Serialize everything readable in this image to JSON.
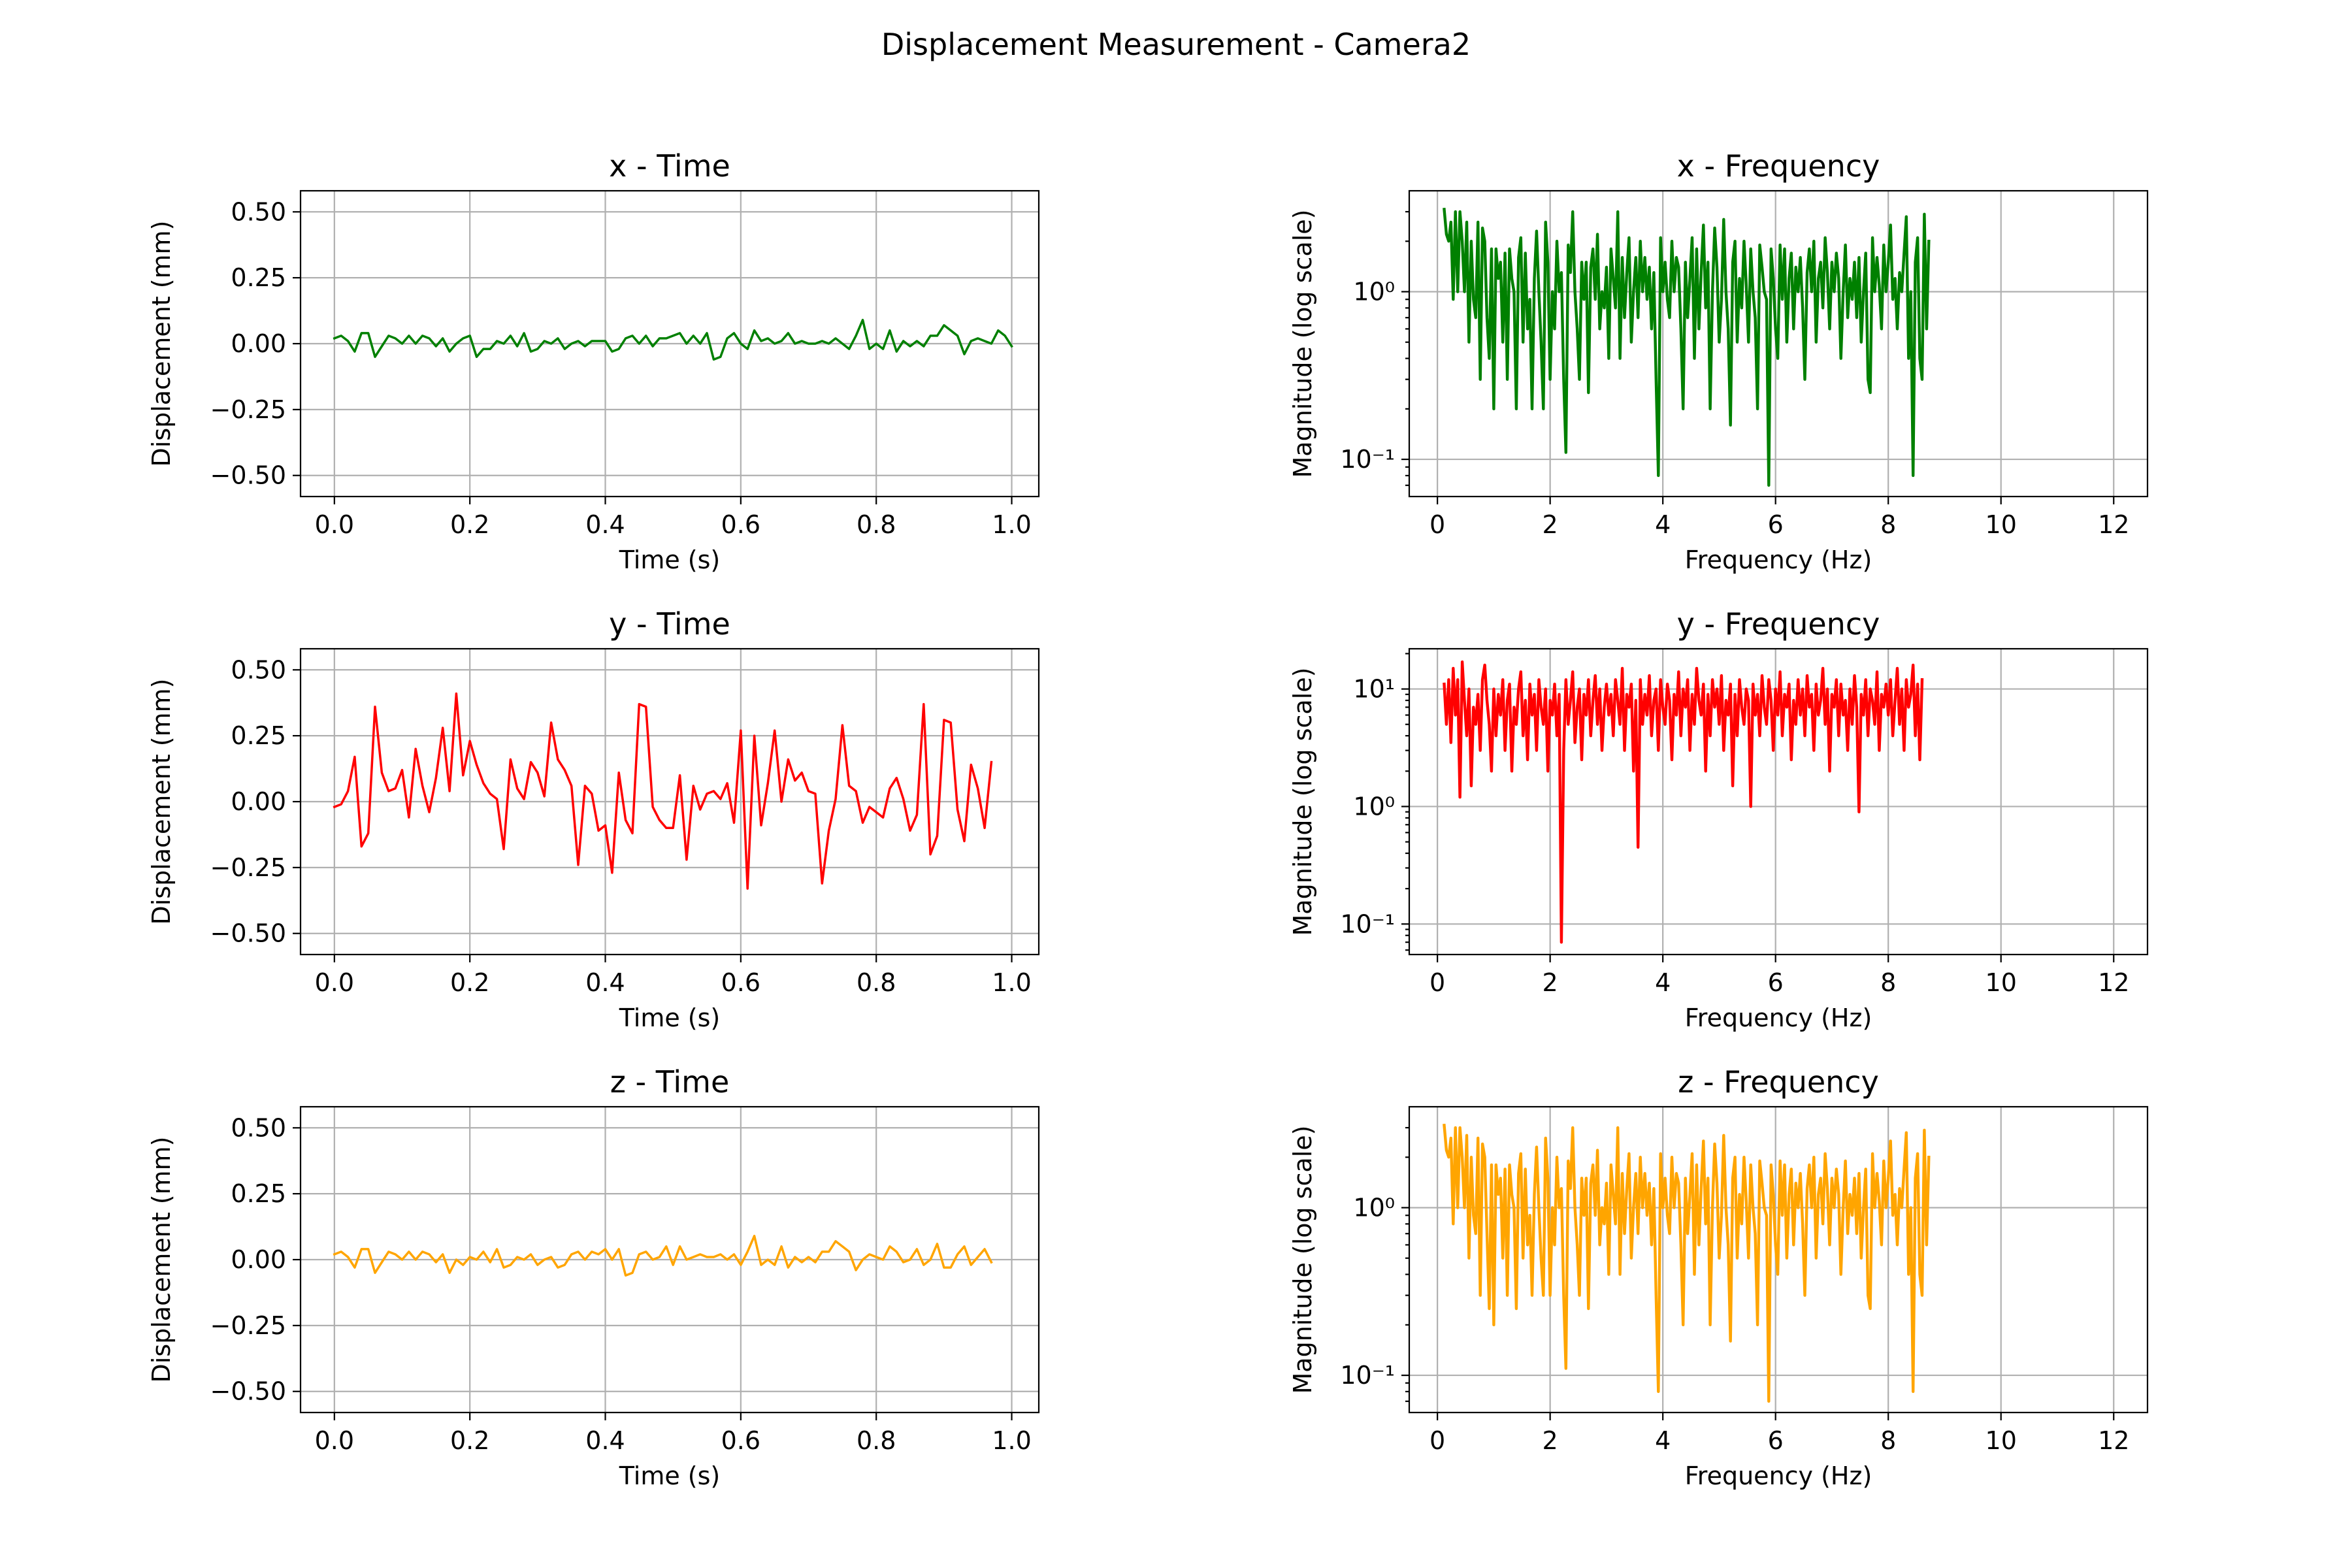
{
  "figure": {
    "title": "Displacement Measurement - Camera2"
  },
  "chart_data": [
    {
      "type": "line",
      "title": "x - Time",
      "xlabel": "Time (s)",
      "ylabel": "Displacement (mm)",
      "xlim": [
        -0.05,
        1.04
      ],
      "ylim": [
        -0.58,
        0.58
      ],
      "xticks": [
        0.0,
        0.2,
        0.4,
        0.6,
        0.8,
        1.0
      ],
      "xtick_labels": [
        "0.0",
        "0.2",
        "0.4",
        "0.6",
        "0.8",
        "1.0"
      ],
      "yticks": [
        0.5,
        0.25,
        0.0,
        -0.25,
        -0.5
      ],
      "ytick_labels": [
        "0.50",
        "0.25",
        "0.00",
        "−0.25",
        "−0.50"
      ],
      "grid": true,
      "color": "#008000",
      "x_start": 0.0,
      "x_step": 0.01,
      "y": [
        0.02,
        0.03,
        0.01,
        -0.03,
        0.04,
        0.04,
        -0.05,
        -0.01,
        0.03,
        0.02,
        0.0,
        0.03,
        0.0,
        0.03,
        0.02,
        -0.01,
        0.02,
        -0.03,
        0.0,
        0.02,
        0.03,
        -0.05,
        -0.02,
        -0.02,
        0.01,
        0.0,
        0.03,
        -0.01,
        0.04,
        -0.03,
        -0.02,
        0.01,
        0.0,
        0.02,
        -0.02,
        0.0,
        0.01,
        -0.01,
        0.01,
        0.01,
        0.01,
        -0.03,
        -0.02,
        0.02,
        0.03,
        0.0,
        0.03,
        -0.01,
        0.02,
        0.02,
        0.03,
        0.04,
        0.0,
        0.03,
        0.0,
        0.04,
        -0.06,
        -0.05,
        0.02,
        0.04,
        0.0,
        -0.02,
        0.05,
        0.01,
        0.02,
        0.0,
        0.01,
        0.04,
        0.0,
        0.01,
        0.0,
        0.0,
        0.01,
        0.0,
        0.02,
        0.0,
        -0.02,
        0.03,
        0.09,
        -0.02,
        0.0,
        -0.02,
        0.05,
        -0.03,
        0.01,
        -0.01,
        0.01,
        -0.01,
        0.03,
        0.03,
        0.07,
        0.05,
        0.03,
        -0.04,
        0.01,
        0.02,
        0.01,
        0.0,
        0.05,
        0.03,
        -0.01
      ]
    },
    {
      "type": "line",
      "title": "x - Frequency",
      "xlabel": "Frequency (Hz)",
      "ylabel": "Magnitude (log scale)",
      "xlim": [
        -0.5,
        12.6
      ],
      "ylim": [
        0.06,
        4.0
      ],
      "yscale": "log",
      "xticks": [
        0,
        2,
        4,
        6,
        8,
        10,
        12
      ],
      "xtick_labels": [
        "0",
        "2",
        "4",
        "6",
        "8",
        "10",
        "12"
      ],
      "yticks": [
        1,
        0.1
      ],
      "grid": true,
      "color": "#008000",
      "x_start": 0.12,
      "x_step": 0.04,
      "y": [
        3.1,
        2.2,
        2.0,
        2.6,
        0.9,
        3.0,
        1.0,
        3.0,
        2.0,
        1.0,
        2.6,
        0.5,
        2.0,
        0.9,
        0.7,
        2.6,
        0.3,
        2.4,
        2.0,
        0.7,
        0.4,
        1.8,
        0.2,
        1.8,
        1.2,
        1.5,
        0.5,
        1.7,
        0.3,
        1.8,
        1.2,
        1.0,
        0.2,
        1.6,
        2.1,
        0.5,
        1.7,
        0.6,
        0.9,
        0.2,
        1.2,
        2.3,
        1.0,
        0.5,
        0.2,
        2.6,
        1.5,
        0.3,
        1.0,
        0.6,
        2.0,
        1.0,
        1.3,
        0.3,
        0.11,
        1.9,
        1.3,
        3.0,
        1.0,
        0.6,
        0.3,
        1.5,
        0.9,
        1.5,
        0.25,
        1.4,
        1.8,
        0.9,
        2.2,
        0.6,
        1.0,
        0.8,
        1.4,
        0.4,
        1.8,
        1.2,
        0.8,
        3.0,
        0.4,
        1.6,
        0.7,
        1.3,
        2.1,
        0.5,
        1.0,
        1.6,
        0.7,
        2.0,
        1.0,
        1.6,
        0.9,
        1.4,
        0.6,
        1.3,
        0.3,
        0.08,
        2.1,
        1.0,
        1.5,
        0.9,
        0.7,
        2.0,
        1.0,
        1.6,
        1.4,
        0.6,
        0.2,
        1.5,
        0.7,
        1.2,
        2.1,
        0.4,
        1.8,
        0.6,
        1.3,
        2.5,
        0.8,
        1.5,
        0.2,
        1.0,
        2.4,
        1.4,
        0.5,
        0.9,
        2.7,
        1.0,
        0.6,
        0.16,
        1.5,
        2.0,
        0.5,
        1.2,
        0.8,
        2.0,
        1.1,
        0.5,
        1.8,
        1.0,
        0.7,
        0.2,
        1.9,
        1.4,
        1.0,
        0.9,
        0.07,
        1.8,
        1.2,
        0.6,
        0.4,
        1.9,
        0.9,
        1.8,
        0.5,
        1.2,
        1.7,
        0.6,
        1.4,
        1.0,
        1.6,
        0.8,
        0.3,
        1.3,
        1.8,
        1.0,
        2.0,
        0.5,
        1.2,
        1.5,
        0.8,
        2.1,
        1.3,
        0.6,
        1.5,
        1.0,
        1.7,
        1.2,
        0.4,
        1.0,
        1.9,
        0.7,
        1.2,
        0.9,
        1.5,
        0.7,
        1.6,
        0.5,
        1.0,
        1.7,
        0.3,
        0.25,
        2.1,
        1.0,
        1.6,
        1.1,
        0.6,
        1.9,
        1.0,
        1.5,
        2.5,
        0.9,
        1.2,
        0.6,
        1.3,
        1.0,
        1.7,
        2.8,
        0.4,
        1.0,
        0.08,
        1.5,
        2.1,
        0.4,
        0.3,
        2.9,
        0.6,
        2.0
      ]
    },
    {
      "type": "line",
      "title": "y - Time",
      "xlabel": "Time (s)",
      "ylabel": "Displacement (mm)",
      "xlim": [
        -0.05,
        1.04
      ],
      "ylim": [
        -0.58,
        0.58
      ],
      "xticks": [
        0.0,
        0.2,
        0.4,
        0.6,
        0.8,
        1.0
      ],
      "xtick_labels": [
        "0.0",
        "0.2",
        "0.4",
        "0.6",
        "0.8",
        "1.0"
      ],
      "yticks": [
        0.5,
        0.25,
        0.0,
        -0.25,
        -0.5
      ],
      "ytick_labels": [
        "0.50",
        "0.25",
        "0.00",
        "−0.25",
        "−0.50"
      ],
      "grid": true,
      "color": "#ff0000",
      "x_start": 0.0,
      "x_step": 0.01,
      "y": [
        -0.02,
        -0.01,
        0.04,
        0.17,
        -0.17,
        -0.12,
        0.36,
        0.11,
        0.04,
        0.05,
        0.12,
        -0.06,
        0.2,
        0.06,
        -0.04,
        0.09,
        0.28,
        0.04,
        0.41,
        0.1,
        0.23,
        0.14,
        0.07,
        0.03,
        0.01,
        -0.18,
        0.16,
        0.05,
        0.01,
        0.15,
        0.11,
        0.02,
        0.3,
        0.16,
        0.12,
        0.06,
        -0.24,
        0.06,
        0.03,
        -0.11,
        -0.09,
        -0.27,
        0.11,
        -0.07,
        -0.12,
        0.37,
        0.36,
        -0.02,
        -0.07,
        -0.1,
        -0.1,
        0.1,
        -0.22,
        0.06,
        -0.03,
        0.03,
        0.04,
        0.01,
        0.07,
        -0.08,
        0.27,
        -0.33,
        0.25,
        -0.09,
        0.07,
        0.27,
        0.0,
        0.16,
        0.08,
        0.11,
        0.04,
        0.03,
        -0.31,
        -0.11,
        0.01,
        0.29,
        0.06,
        0.04,
        -0.08,
        -0.02,
        -0.04,
        -0.06,
        0.05,
        0.09,
        0.01,
        -0.11,
        -0.05,
        0.37,
        -0.2,
        -0.13,
        0.31,
        0.3,
        -0.03,
        -0.15,
        0.14,
        0.05,
        -0.1,
        0.15
      ]
    },
    {
      "type": "line",
      "title": "y - Frequency",
      "xlabel": "Frequency (Hz)",
      "ylabel": "Magnitude (log scale)",
      "xlim": [
        -0.5,
        12.6
      ],
      "ylim": [
        0.055,
        22.0
      ],
      "yscale": "log",
      "xticks": [
        0,
        2,
        4,
        6,
        8,
        10,
        12
      ],
      "xtick_labels": [
        "0",
        "2",
        "4",
        "6",
        "8",
        "10",
        "12"
      ],
      "yticks": [
        10,
        1,
        0.1
      ],
      "grid": true,
      "color": "#ff0000",
      "x_start": 0.12,
      "x_step": 0.04,
      "y": [
        11.0,
        5.0,
        12.0,
        3.5,
        15.0,
        6.0,
        12.0,
        1.2,
        17.0,
        8.0,
        4.0,
        10.0,
        1.5,
        7.0,
        5.0,
        9.0,
        3.0,
        12.0,
        16.0,
        8.0,
        5.0,
        2.0,
        10.0,
        4.0,
        9.0,
        6.0,
        12.0,
        3.0,
        8.0,
        11.0,
        2.0,
        7.0,
        5.0,
        10.0,
        14.0,
        4.0,
        8.0,
        2.5,
        11.0,
        6.0,
        9.0,
        3.0,
        12.0,
        7.0,
        5.0,
        10.0,
        2.0,
        8.0,
        6.0,
        11.0,
        4.0,
        9.0,
        0.07,
        3.0,
        12.0,
        5.0,
        8.0,
        14.0,
        3.5,
        7.0,
        10.0,
        2.5,
        9.0,
        6.0,
        12.0,
        4.0,
        8.0,
        13.0,
        5.0,
        10.0,
        3.0,
        7.0,
        11.0,
        6.0,
        9.0,
        4.0,
        12.0,
        8.0,
        5.0,
        15.0,
        3.0,
        9.0,
        7.0,
        11.0,
        2.0,
        8.0,
        0.45,
        12.0,
        5.0,
        9.0,
        6.0,
        13.0,
        4.0,
        8.0,
        10.0,
        3.0,
        12.0,
        7.0,
        5.0,
        11.0,
        8.0,
        2.5,
        9.0,
        6.0,
        14.0,
        4.0,
        10.0,
        7.0,
        12.0,
        3.0,
        9.0,
        5.0,
        15.0,
        8.0,
        6.0,
        11.0,
        2.0,
        9.0,
        4.0,
        12.0,
        7.0,
        10.0,
        5.0,
        13.0,
        3.0,
        8.0,
        6.0,
        11.0,
        1.5,
        9.0,
        4.0,
        12.0,
        7.0,
        5.0,
        10.0,
        8.0,
        1.0,
        11.0,
        6.0,
        9.0,
        4.0,
        13.0,
        7.0,
        5.0,
        12.0,
        8.0,
        3.0,
        10.0,
        6.0,
        14.0,
        4.0,
        9.0,
        7.0,
        11.0,
        2.5,
        8.0,
        5.0,
        12.0,
        6.0,
        10.0,
        4.0,
        13.0,
        7.0,
        9.0,
        3.0,
        11.0,
        6.0,
        8.0,
        15.0,
        5.0,
        10.0,
        2.0,
        9.0,
        7.0,
        12.0,
        4.0,
        11.0,
        6.0,
        8.0,
        3.0,
        10.0,
        5.0,
        13.0,
        7.0,
        0.9,
        9.0,
        6.0,
        12.0,
        4.0,
        10.0,
        8.0,
        5.0,
        14.0,
        3.0,
        9.0,
        7.0,
        11.0,
        6.0,
        12.0,
        4.0,
        8.0,
        15.0,
        5.0,
        10.0,
        3.0,
        12.0,
        7.0,
        9.0,
        16.0,
        4.0,
        11.0,
        2.5,
        12.0
      ]
    },
    {
      "type": "line",
      "title": "z - Time",
      "xlabel": "Time (s)",
      "ylabel": "Displacement (mm)",
      "xlim": [
        -0.05,
        1.04
      ],
      "ylim": [
        -0.58,
        0.58
      ],
      "xticks": [
        0.0,
        0.2,
        0.4,
        0.6,
        0.8,
        1.0
      ],
      "xtick_labels": [
        "0.0",
        "0.2",
        "0.4",
        "0.6",
        "0.8",
        "1.0"
      ],
      "yticks": [
        0.5,
        0.25,
        0.0,
        -0.25,
        -0.5
      ],
      "ytick_labels": [
        "0.50",
        "0.25",
        "0.00",
        "−0.25",
        "−0.50"
      ],
      "grid": true,
      "color": "#ffa500",
      "x_start": 0.0,
      "x_step": 0.01,
      "y": [
        0.02,
        0.03,
        0.01,
        -0.03,
        0.04,
        0.04,
        -0.05,
        -0.01,
        0.03,
        0.02,
        0.0,
        0.03,
        0.0,
        0.03,
        0.02,
        -0.01,
        0.02,
        -0.05,
        0.0,
        -0.02,
        0.01,
        0.0,
        0.03,
        -0.01,
        0.04,
        -0.03,
        -0.02,
        0.01,
        0.0,
        0.02,
        -0.02,
        0.0,
        0.01,
        -0.03,
        -0.02,
        0.02,
        0.03,
        0.0,
        0.03,
        0.02,
        0.04,
        0.0,
        0.04,
        -0.06,
        -0.05,
        0.02,
        0.03,
        0.0,
        0.01,
        0.05,
        -0.02,
        0.05,
        0.0,
        0.01,
        0.02,
        0.01,
        0.01,
        0.02,
        0.0,
        0.02,
        -0.02,
        0.03,
        0.09,
        -0.02,
        0.0,
        -0.02,
        0.05,
        -0.03,
        0.01,
        -0.01,
        0.01,
        -0.01,
        0.03,
        0.03,
        0.07,
        0.05,
        0.03,
        -0.04,
        0.0,
        0.02,
        0.01,
        0.0,
        0.05,
        0.03,
        -0.01,
        0.0,
        0.04,
        -0.02,
        0.0,
        0.06,
        -0.03,
        -0.03,
        0.02,
        0.05,
        -0.02,
        0.01,
        0.04,
        -0.01
      ]
    },
    {
      "type": "line",
      "title": "z - Frequency",
      "xlabel": "Frequency (Hz)",
      "ylabel": "Magnitude (log scale)",
      "xlim": [
        -0.5,
        12.6
      ],
      "ylim": [
        0.06,
        4.0
      ],
      "yscale": "log",
      "xticks": [
        0,
        2,
        4,
        6,
        8,
        10,
        12
      ],
      "xtick_labels": [
        "0",
        "2",
        "4",
        "6",
        "8",
        "10",
        "12"
      ],
      "yticks": [
        1,
        0.1
      ],
      "grid": true,
      "color": "#ffa500",
      "x_start": 0.12,
      "x_step": 0.04,
      "y": [
        3.1,
        2.2,
        2.0,
        2.6,
        0.8,
        3.0,
        1.0,
        3.0,
        2.0,
        1.0,
        2.7,
        0.5,
        2.0,
        0.9,
        0.7,
        2.6,
        0.3,
        2.4,
        2.0,
        0.7,
        0.25,
        1.8,
        0.2,
        1.8,
        1.2,
        1.5,
        0.5,
        1.7,
        0.3,
        1.8,
        1.2,
        1.0,
        0.25,
        1.6,
        2.1,
        0.5,
        1.7,
        0.6,
        0.9,
        0.3,
        1.2,
        2.3,
        1.0,
        0.5,
        0.3,
        2.6,
        1.5,
        0.3,
        1.0,
        0.6,
        2.0,
        1.0,
        1.3,
        0.3,
        0.11,
        1.9,
        1.3,
        3.0,
        1.0,
        0.6,
        0.3,
        1.5,
        0.9,
        1.5,
        0.25,
        1.4,
        1.8,
        0.9,
        2.2,
        0.6,
        1.0,
        0.8,
        1.4,
        0.4,
        1.8,
        1.2,
        0.8,
        3.0,
        0.4,
        1.6,
        0.7,
        1.3,
        2.1,
        0.5,
        1.0,
        1.6,
        0.7,
        2.0,
        1.0,
        1.6,
        0.9,
        1.4,
        0.6,
        1.3,
        0.3,
        0.08,
        2.1,
        1.0,
        1.5,
        0.9,
        0.7,
        2.0,
        1.0,
        1.6,
        1.4,
        0.6,
        0.2,
        1.5,
        0.7,
        1.2,
        2.1,
        0.4,
        1.8,
        0.6,
        1.3,
        2.5,
        0.8,
        1.5,
        0.2,
        1.0,
        2.4,
        1.4,
        0.5,
        0.9,
        2.7,
        1.0,
        0.6,
        0.16,
        1.5,
        2.0,
        0.5,
        1.2,
        0.8,
        2.0,
        1.1,
        0.5,
        1.8,
        1.0,
        0.7,
        0.2,
        1.9,
        1.4,
        1.0,
        0.9,
        0.07,
        1.8,
        1.2,
        0.6,
        0.4,
        1.9,
        0.9,
        1.8,
        0.5,
        1.2,
        1.7,
        0.6,
        1.4,
        1.0,
        1.6,
        0.8,
        0.3,
        1.3,
        1.8,
        1.0,
        2.0,
        0.5,
        1.2,
        1.5,
        0.8,
        2.1,
        1.3,
        0.6,
        1.5,
        1.0,
        1.7,
        1.2,
        0.4,
        1.0,
        1.9,
        0.7,
        1.2,
        0.9,
        1.5,
        0.7,
        1.6,
        0.5,
        1.0,
        1.7,
        0.3,
        0.25,
        2.1,
        1.0,
        1.6,
        1.1,
        0.6,
        1.9,
        1.0,
        1.5,
        2.5,
        0.9,
        1.2,
        0.6,
        1.3,
        1.0,
        1.7,
        2.8,
        0.4,
        1.0,
        0.08,
        1.5,
        2.1,
        0.4,
        0.3,
        2.9,
        0.6,
        2.0
      ]
    }
  ]
}
